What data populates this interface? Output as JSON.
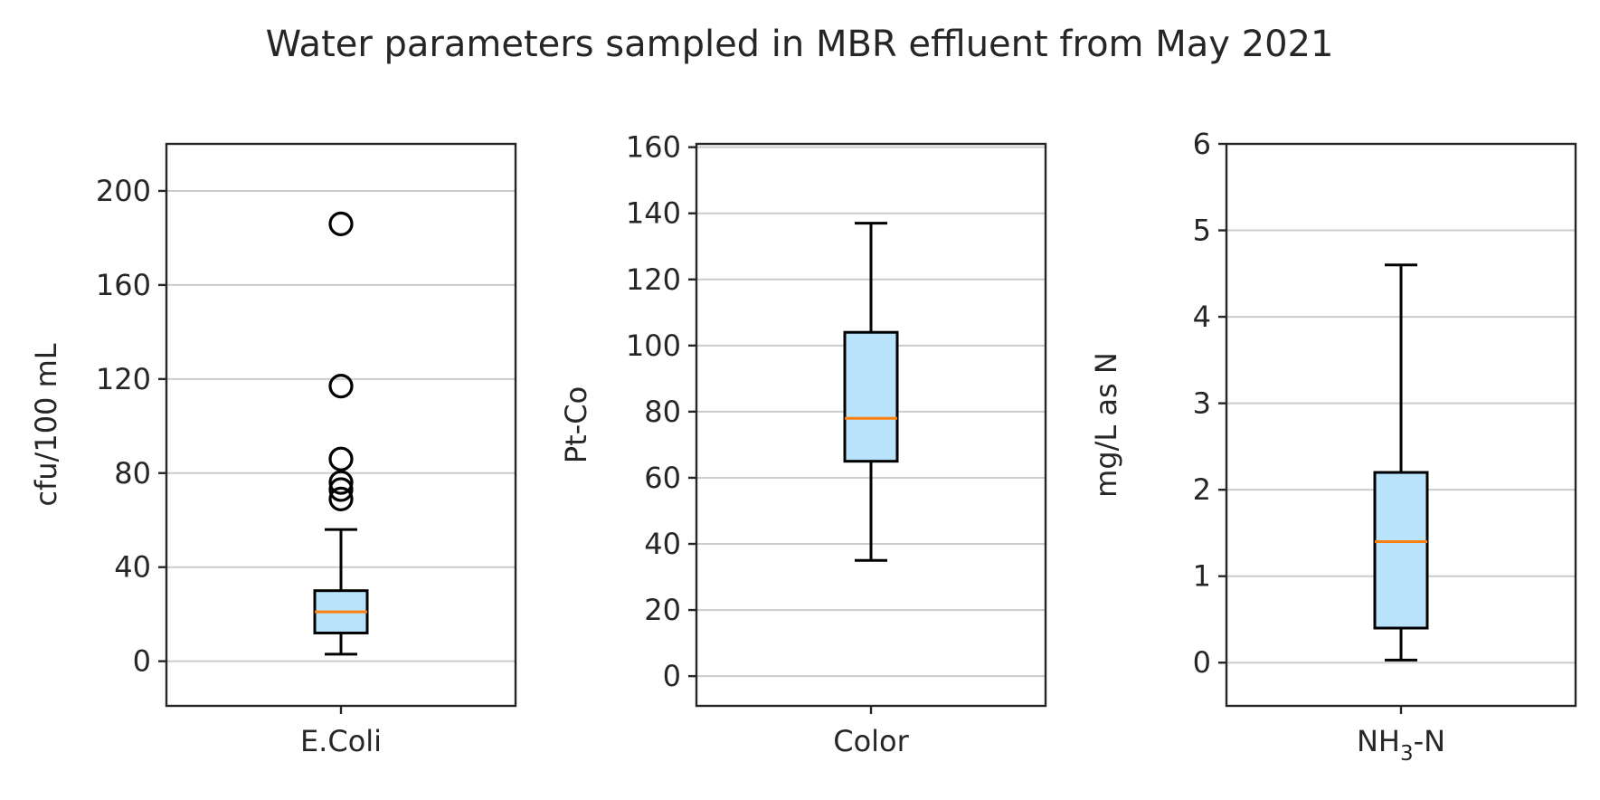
{
  "chart_data": {
    "type": "box",
    "title": "Water parameters sampled in MBR effluent from May 2021",
    "grid": "horizontal",
    "colors": {
      "box_fill": "#b9e3fb",
      "box_edge": "#000000",
      "median": "#ff7f0e",
      "grid": "#cccccc",
      "axes": "#262626"
    },
    "panels": [
      {
        "category": "E.Coli",
        "category_main": "E.Coli",
        "category_sub": "",
        "category_suffix": "",
        "ylabel": "cfu/100 mL",
        "ylim": [
          -19,
          220
        ],
        "yticks": [
          0,
          40,
          80,
          120,
          160,
          200
        ],
        "ytick_labels": [
          "0",
          "40",
          "80",
          "120",
          "160",
          "200"
        ],
        "whisker_low": 3,
        "q1": 12,
        "median": 21,
        "q3": 30,
        "whisker_high": 56,
        "fliers": [
          69,
          73,
          76,
          86,
          117,
          186
        ]
      },
      {
        "category": "Color",
        "category_main": "Color",
        "category_sub": "",
        "category_suffix": "",
        "ylabel": "Pt-Co",
        "ylim": [
          -9,
          161
        ],
        "yticks": [
          0,
          20,
          40,
          60,
          80,
          100,
          120,
          140,
          160
        ],
        "ytick_labels": [
          "0",
          "20",
          "40",
          "60",
          "80",
          "100",
          "120",
          "140",
          "160"
        ],
        "whisker_low": 35,
        "q1": 65,
        "median": 78,
        "q3": 104,
        "whisker_high": 137,
        "fliers": []
      },
      {
        "category": "NH3-N",
        "category_main": "NH",
        "category_sub": "3",
        "category_suffix": "-N",
        "ylabel": "mg/L as N",
        "ylim": [
          -0.5,
          6
        ],
        "yticks": [
          0,
          1,
          2,
          3,
          4,
          5,
          6
        ],
        "ytick_labels": [
          "0",
          "1",
          "2",
          "3",
          "4",
          "5",
          "6"
        ],
        "whisker_low": 0.03,
        "q1": 0.4,
        "median": 1.4,
        "q3": 2.2,
        "whisker_high": 4.6,
        "fliers": []
      }
    ]
  }
}
